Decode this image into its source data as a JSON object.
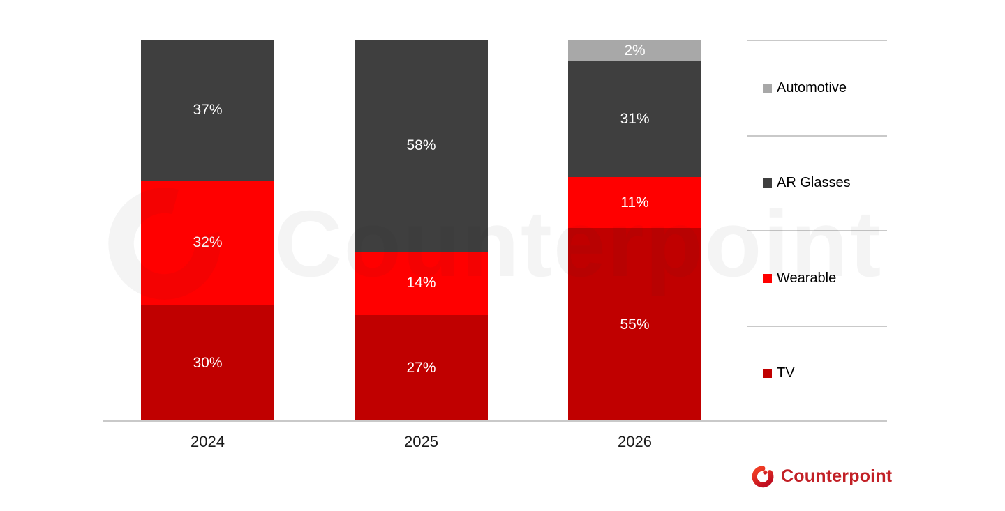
{
  "chart_data": {
    "type": "bar",
    "variant": "stacked-percent",
    "title": "",
    "xlabel": "",
    "ylabel": "",
    "categories": [
      "2024",
      "2025",
      "2026"
    ],
    "series": [
      {
        "name": "Automotive",
        "color": "#A8A8A8",
        "values": [
          0,
          0,
          2
        ]
      },
      {
        "name": "AR Glasses",
        "color": "#3F3F3F",
        "values": [
          37,
          58,
          31
        ]
      },
      {
        "name": "Wearable",
        "color": "#FF0000",
        "values": [
          32,
          14,
          11
        ]
      },
      {
        "name": "TV",
        "color": "#C00000",
        "values": [
          30,
          27,
          55
        ]
      }
    ],
    "value_suffix": "%",
    "ylim": [
      0,
      100
    ],
    "grid": false,
    "legend_position": "right",
    "legend_order": [
      "Automotive",
      "AR Glasses",
      "Wearable",
      "TV"
    ]
  },
  "watermark": {
    "text": "Counterpoint"
  },
  "branding": {
    "logo_text": "Counterpoint",
    "logo_text_color": "#C22026",
    "icon_color_top": "#EE3B24",
    "icon_color_bottom": "#C00E20"
  }
}
